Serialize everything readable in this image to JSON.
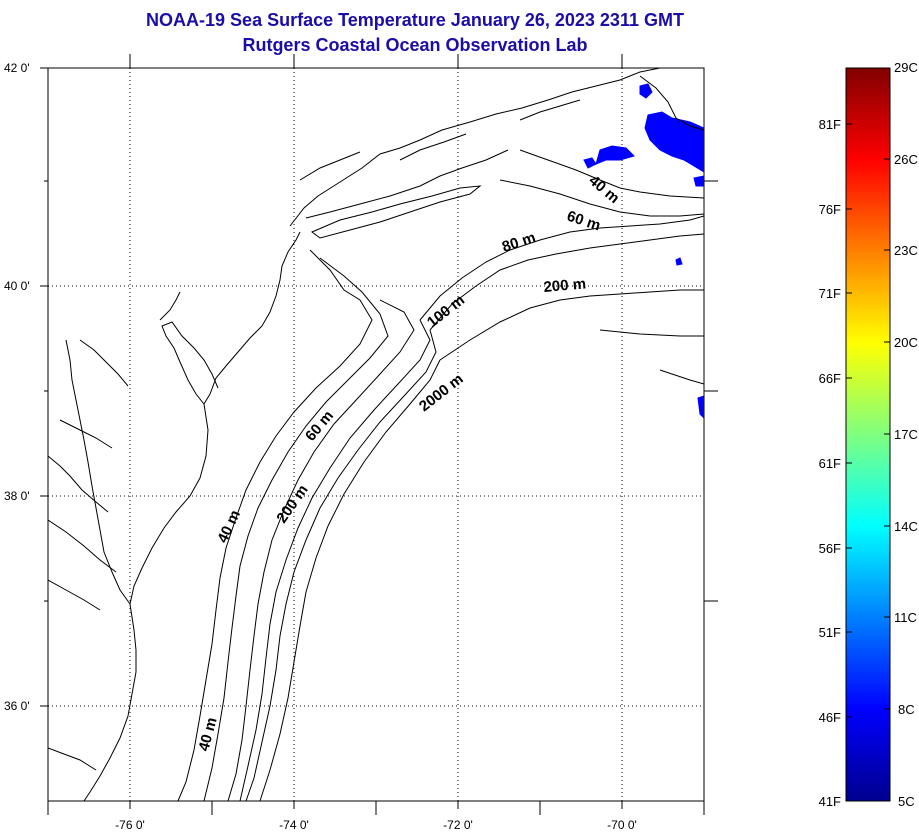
{
  "title": {
    "line1": "NOAA-19 Sea Surface Temperature January 26, 2023 2311 GMT",
    "line2": "Rutgers Coastal Ocean Observation Lab"
  },
  "map": {
    "lat_labels": [
      "42 0'",
      "40 0'",
      "38 0'",
      "36 0'"
    ],
    "lon_labels": [
      "-76 0'",
      "-74 0'",
      "-72 0'",
      "-70 0'"
    ],
    "lat_range": [
      35,
      42
    ],
    "lon_range": [
      -77,
      -69
    ],
    "contour_labels": [
      "40 m",
      "60 m",
      "80 m",
      "200 m",
      "100 m",
      "2000 m",
      "60 m",
      "200 m",
      "40 m",
      "40 m"
    ],
    "sst_patch_color": "#0000ff",
    "land_color": "#ffffff",
    "coast_color": "#000000"
  },
  "colorbar": {
    "celsius_labels": [
      "29C",
      "26C",
      "23C",
      "20C",
      "17C",
      "14C",
      "11C",
      "8C",
      "5C"
    ],
    "fahrenheit_labels": [
      "81F",
      "76F",
      "71F",
      "66F",
      "61F",
      "56F",
      "51F",
      "46F",
      "41F"
    ],
    "colors": [
      "#800000",
      "#ff0000",
      "#ff8000",
      "#ffff00",
      "#80ff80",
      "#00ffff",
      "#0080ff",
      "#0000ff",
      "#00008f"
    ]
  }
}
